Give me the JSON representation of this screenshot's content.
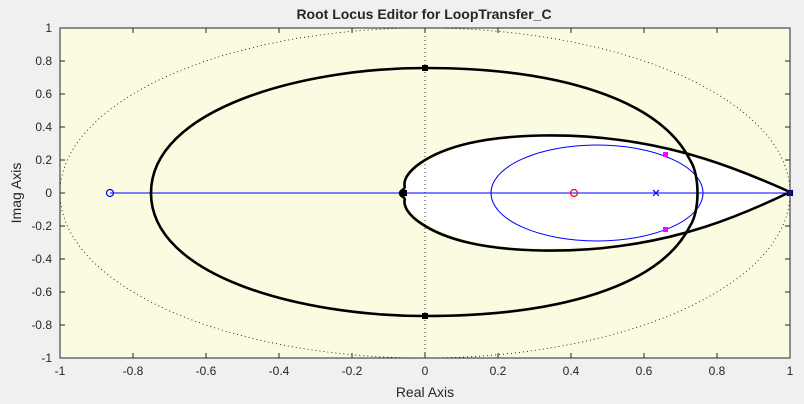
{
  "chart_data": {
    "type": "line",
    "title": "Root Locus Editor for LoopTransfer_C",
    "xlabel": "Real Axis",
    "ylabel": "Imag Axis",
    "xlim": [
      -1,
      1
    ],
    "ylim": [
      -1,
      1
    ],
    "xticks": [
      "-1",
      "-0.8",
      "-0.6",
      "-0.4",
      "-0.2",
      "0",
      "0.2",
      "0.4",
      "0.6",
      "0.8",
      "1"
    ],
    "yticks": [
      "1",
      "0.8",
      "0.6",
      "0.4",
      "0.2",
      "0",
      "-0.2",
      "-0.4",
      "-0.6",
      "-0.8",
      "-1"
    ],
    "unit_circle": true,
    "series": [
      {
        "kind": "outer-locus-upper",
        "x": [
          -0.75,
          -0.72,
          -0.62,
          -0.45,
          -0.2,
          0,
          0.2,
          0.4,
          0.6,
          0.7
        ],
        "y": [
          0,
          0.2,
          0.4,
          0.58,
          0.72,
          0.75,
          0.72,
          0.6,
          0.4,
          0.25
        ]
      },
      {
        "kind": "inner-locus",
        "x": [
          -0.04,
          0,
          0.1,
          0.3,
          0.5,
          0.65,
          0.75,
          0.85,
          1.0
        ],
        "y": [
          0.04,
          0.12,
          0.24,
          0.32,
          0.31,
          0.27,
          0.22,
          0.15,
          0
        ]
      },
      {
        "kind": "blue-circle",
        "center": [
          0.47,
          0
        ],
        "radius_x": 0.29,
        "radius_y": 0.26
      }
    ],
    "poles": [
      {
        "x": 0.634,
        "y": 0
      },
      {
        "x": 1.0,
        "y": 0
      }
    ],
    "zeros": [
      {
        "x": -0.866,
        "y": 0
      }
    ],
    "compensator_zero": {
      "x": 0.41,
      "y": 0
    },
    "closed_loop_poles": [
      {
        "x": 0.66,
        "y": 0.21
      },
      {
        "x": 0.66,
        "y": -0.21
      }
    ],
    "colors": {
      "plot_bg": "#fbfbe1",
      "root_locus": "#000000",
      "blue_locus": "#0000ff",
      "closed_loop_pole": "#ff00ff",
      "compensator_zero": "#ff0000",
      "figure_bg": "#f0f0f0"
    }
  }
}
